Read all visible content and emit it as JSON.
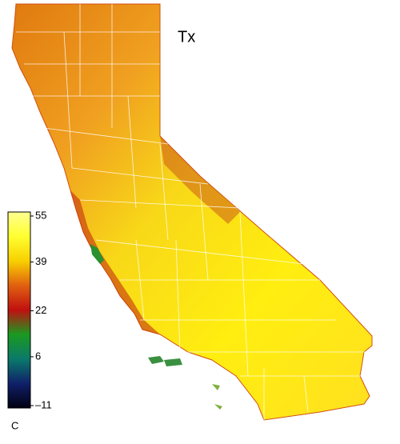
{
  "map": {
    "title": "Tx",
    "colorbar": {
      "unit": "C",
      "lim": [
        -11,
        55
      ],
      "ticks": [
        55,
        39,
        22,
        {
          "value": -11,
          "label": "–11"
        },
        6
      ],
      "colors": [
        "#000010",
        "#10206a",
        "#0a7a6a",
        "#1a9a20",
        "#c01010",
        "#e06010",
        "#f8d000",
        "#ffff30",
        "#ffff90"
      ]
    }
  }
}
